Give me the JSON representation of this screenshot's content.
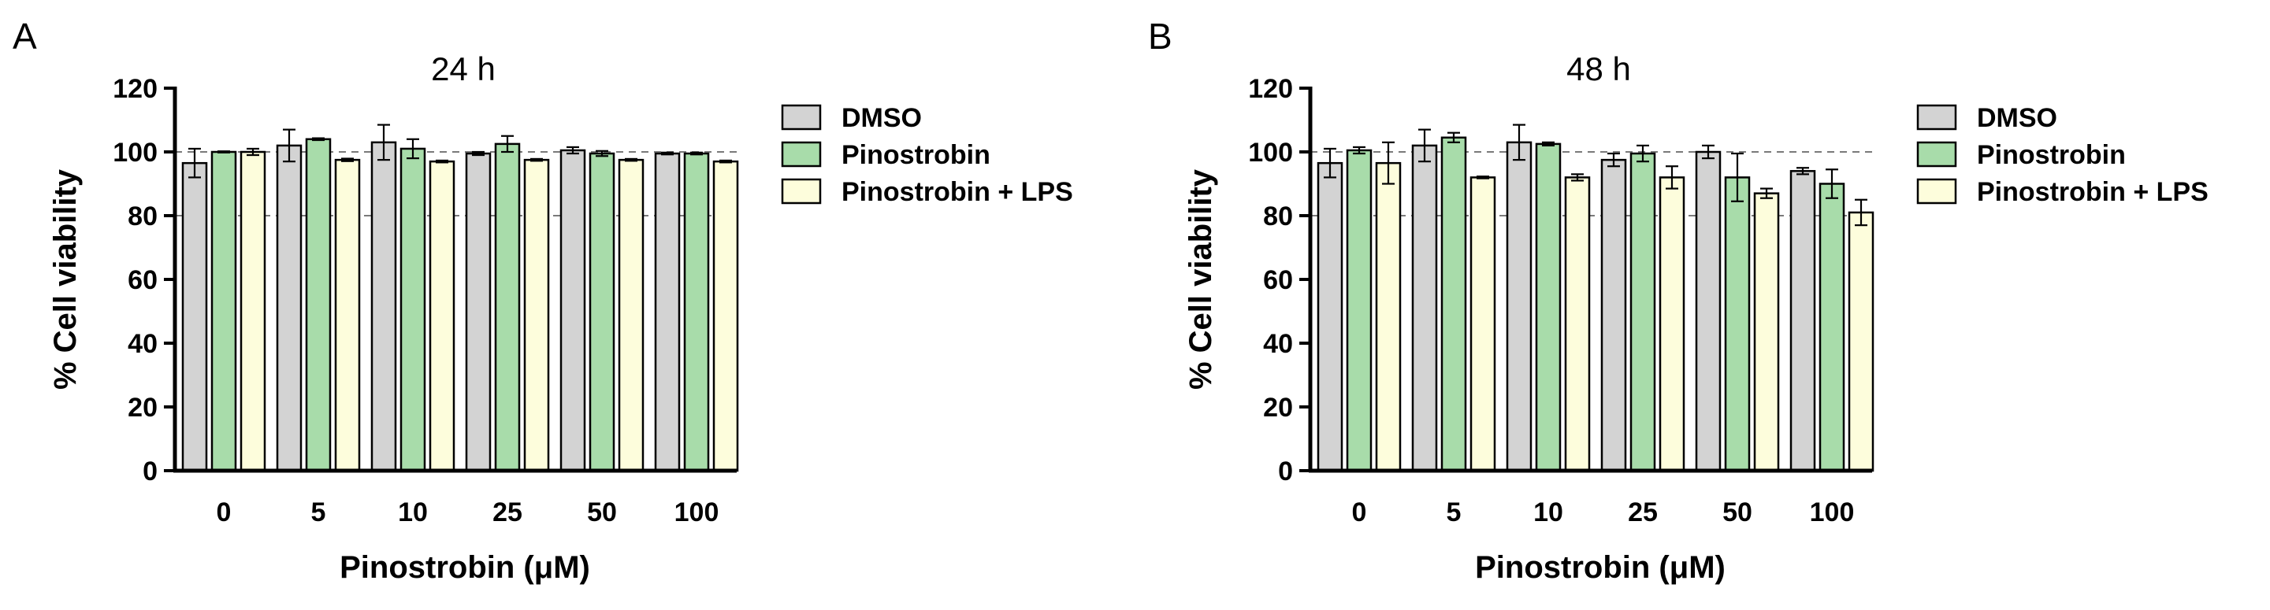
{
  "chart_data": [
    {
      "type": "bar",
      "panel": "A",
      "title": "24 h",
      "xlabel": "Pinostrobin (μM)",
      "ylabel": "% Cell viability",
      "categories": [
        "0",
        "5",
        "10",
        "25",
        "50",
        "100"
      ],
      "ylim": [
        0,
        120
      ],
      "yticks": [
        "0",
        "20",
        "40",
        "60",
        "80",
        "100",
        "120"
      ],
      "reference_lines": [
        80,
        100
      ],
      "legend_position": "right",
      "series": [
        {
          "name": "DMSO",
          "color": "#d3d3d3",
          "values": [
            96.5,
            102.0,
            103.0,
            99.5,
            100.5,
            99.5
          ],
          "errors": [
            4.5,
            5.0,
            5.5,
            0.5,
            1.0,
            0.3
          ]
        },
        {
          "name": "Pinostrobin",
          "color": "#a8dcaa",
          "values": [
            100.0,
            104.0,
            101.0,
            102.5,
            99.5,
            99.5
          ],
          "errors": [
            0.2,
            0.3,
            3.0,
            2.5,
            0.8,
            0.3
          ]
        },
        {
          "name": "Pinostrobin + LPS",
          "color": "#fdfddc",
          "values": [
            100.0,
            97.5,
            97.0,
            97.5,
            97.5,
            97.0
          ],
          "errors": [
            1.0,
            0.4,
            0.3,
            0.3,
            0.3,
            0.3
          ]
        }
      ]
    },
    {
      "type": "bar",
      "panel": "B",
      "title": "48 h",
      "xlabel": "Pinostrobin (μM)",
      "ylabel": "% Cell viability",
      "categories": [
        "0",
        "5",
        "10",
        "25",
        "50",
        "100"
      ],
      "ylim": [
        0,
        120
      ],
      "yticks": [
        "0",
        "20",
        "40",
        "60",
        "80",
        "100",
        "120"
      ],
      "reference_lines": [
        80,
        100
      ],
      "legend_position": "right",
      "series": [
        {
          "name": "DMSO",
          "color": "#d3d3d3",
          "values": [
            96.5,
            102.0,
            103.0,
            97.5,
            100.0,
            94.0
          ],
          "errors": [
            4.5,
            5.0,
            5.5,
            2.0,
            2.0,
            1.0
          ]
        },
        {
          "name": "Pinostrobin",
          "color": "#a8dcaa",
          "values": [
            100.5,
            104.5,
            102.5,
            99.5,
            92.0,
            90.0
          ],
          "errors": [
            1.0,
            1.5,
            0.5,
            2.5,
            7.5,
            4.5
          ]
        },
        {
          "name": "Pinostrobin + LPS",
          "color": "#fdfddc",
          "values": [
            96.5,
            92.0,
            92.0,
            92.0,
            87.0,
            81.0
          ],
          "errors": [
            6.5,
            0.3,
            1.0,
            3.5,
            1.5,
            4.0
          ]
        }
      ]
    }
  ]
}
